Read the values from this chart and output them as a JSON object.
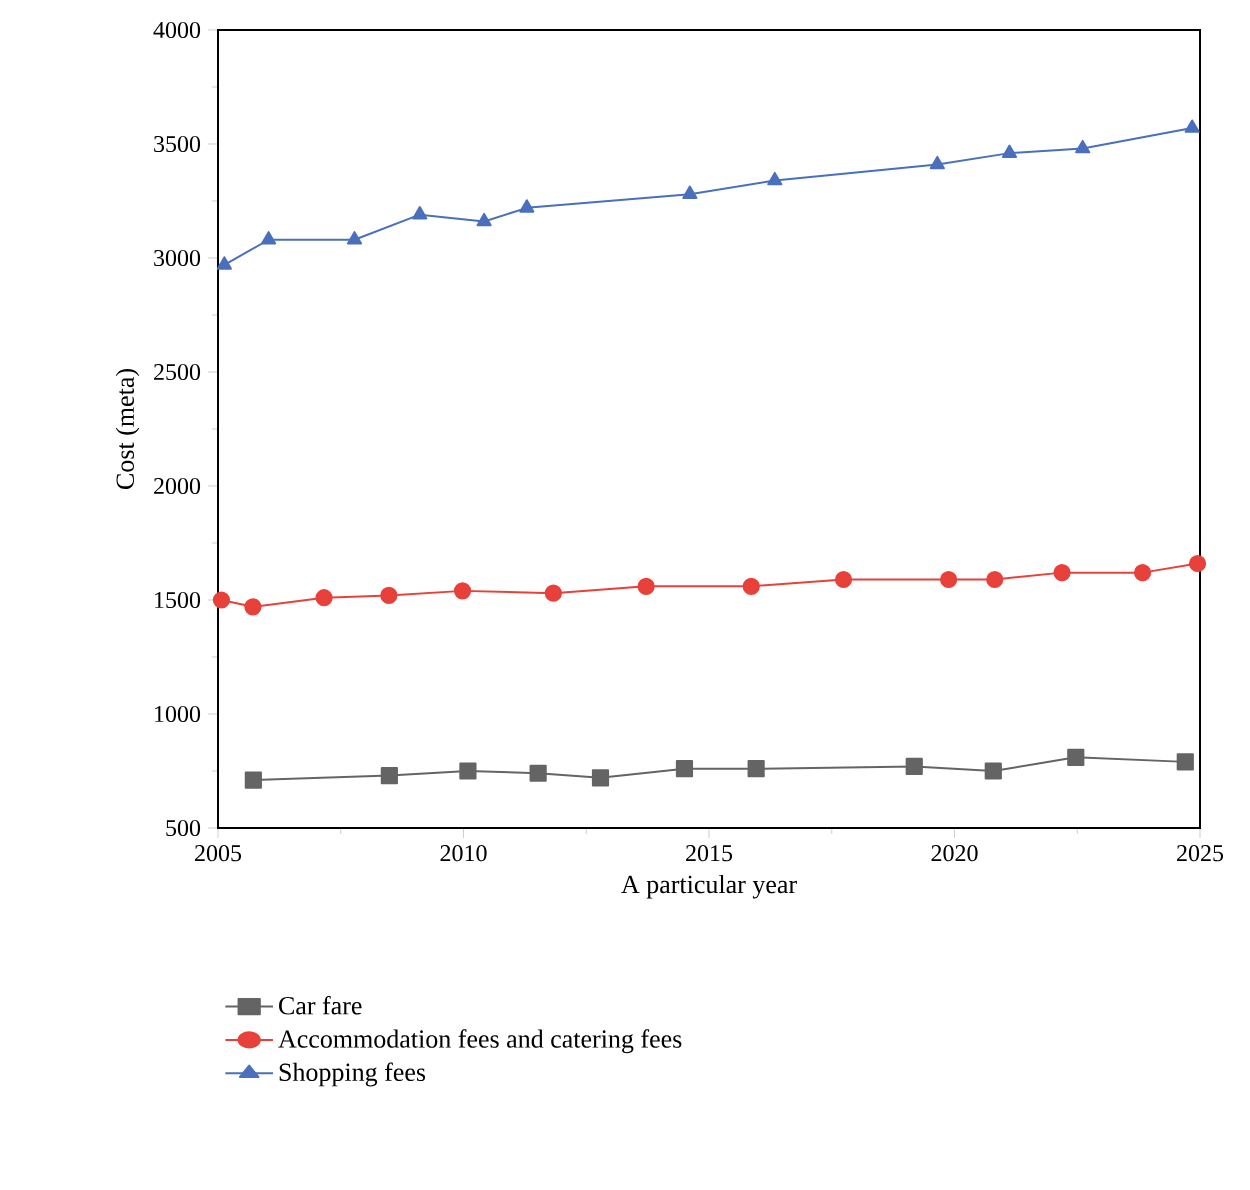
{
  "chart_data": {
    "type": "line",
    "xlabel": "A particular year",
    "ylabel": "Cost (meta)",
    "xlim": [
      2005,
      2025
    ],
    "xticks": [
      2005,
      2010,
      2015,
      2020,
      2025
    ],
    "ylim": [
      500,
      4000
    ],
    "yticks": [
      500,
      1000,
      1500,
      2000,
      2500,
      3000,
      3500,
      4000
    ],
    "legend": "bottom",
    "grid": false,
    "series": [
      {
        "name": "Car fare",
        "color": "#646464",
        "marker": "square",
        "x": [
          2005.72,
          2008.49,
          2010.09,
          2011.52,
          2012.79,
          2014.5,
          2015.96,
          2019.18,
          2020.79,
          2022.47,
          2024.7
        ],
        "values": [
          710,
          730,
          750,
          740,
          720,
          760,
          760,
          770,
          750,
          810,
          790
        ]
      },
      {
        "name": "Accommodation fees and catering fees",
        "color": "#e8403a",
        "marker": "circle",
        "x": [
          2005.07,
          2005.71,
          2007.16,
          2008.48,
          2009.98,
          2011.83,
          2013.72,
          2015.86,
          2017.74,
          2019.88,
          2020.82,
          2022.19,
          2023.83,
          2024.95
        ],
        "values": [
          1500,
          1470,
          1510,
          1520,
          1540,
          1530,
          1560,
          1560,
          1590,
          1590,
          1590,
          1620,
          1620,
          1660
        ]
      },
      {
        "name": "Shopping fees",
        "color": "#4a6fbd",
        "marker": "triangle",
        "x": [
          2005.13,
          2006.03,
          2007.78,
          2009.11,
          2010.42,
          2011.29,
          2014.61,
          2016.34,
          2019.65,
          2021.12,
          2022.61,
          2024.84
        ],
        "values": [
          2970,
          3080,
          3080,
          3190,
          3160,
          3220,
          3280,
          3340,
          3410,
          3460,
          3480,
          3570
        ]
      }
    ]
  }
}
